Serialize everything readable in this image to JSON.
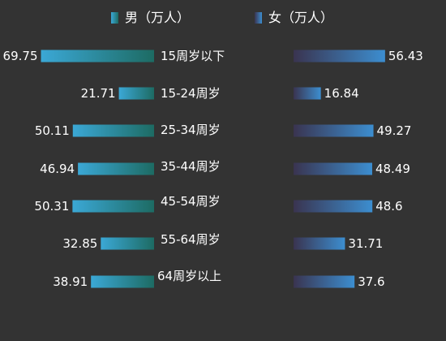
{
  "chart_data": {
    "type": "bar",
    "legend_position": "top",
    "series": [
      {
        "name": "男（万人）",
        "side": "left",
        "values": [
          69.75,
          21.71,
          50.11,
          46.94,
          50.31,
          32.85,
          38.91
        ],
        "labels": [
          "69.75",
          "21.71",
          "50.11",
          "46.94",
          "50.31",
          "32.85",
          "38.91"
        ]
      },
      {
        "name": "女（万人）",
        "side": "right",
        "values": [
          56.43,
          16.84,
          49.27,
          48.49,
          48.6,
          31.71,
          37.6
        ],
        "labels": [
          "56.43",
          "16.84",
          "49.27",
          "48.49",
          "48.6",
          "31.71",
          "37.6"
        ]
      }
    ],
    "categories": [
      "15周岁以下",
      "15-24周岁",
      "25-34周岁",
      "35-44周岁",
      "45-54周岁",
      "55-64周岁",
      "64周岁以上"
    ],
    "xlim": [
      0,
      80
    ],
    "grid": false
  },
  "colors": {
    "background": "#333333",
    "text": "#ffffff",
    "male_bar_start": "#3ba8d6",
    "male_bar_end": "#1d6b63",
    "female_bar_start": "#3a3450",
    "female_bar_end": "#3c8ed0"
  }
}
